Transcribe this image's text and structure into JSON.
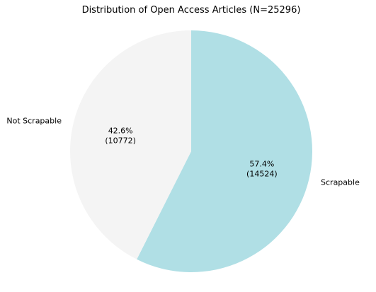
{
  "chart_data": {
    "type": "pie",
    "title": "Distribution of Open Access Articles (N=25296)",
    "categories": [
      "Scrapable",
      "Not Scrapable"
    ],
    "values": [
      14524,
      10772
    ],
    "percentages": [
      "57.4%",
      "42.6%"
    ],
    "counts": [
      "(14524)",
      "(10772)"
    ],
    "colors": [
      "#b0dfe5",
      "#f4f4f4"
    ],
    "start_angle": "top (12 o'clock), clockwise",
    "legend": "none"
  }
}
